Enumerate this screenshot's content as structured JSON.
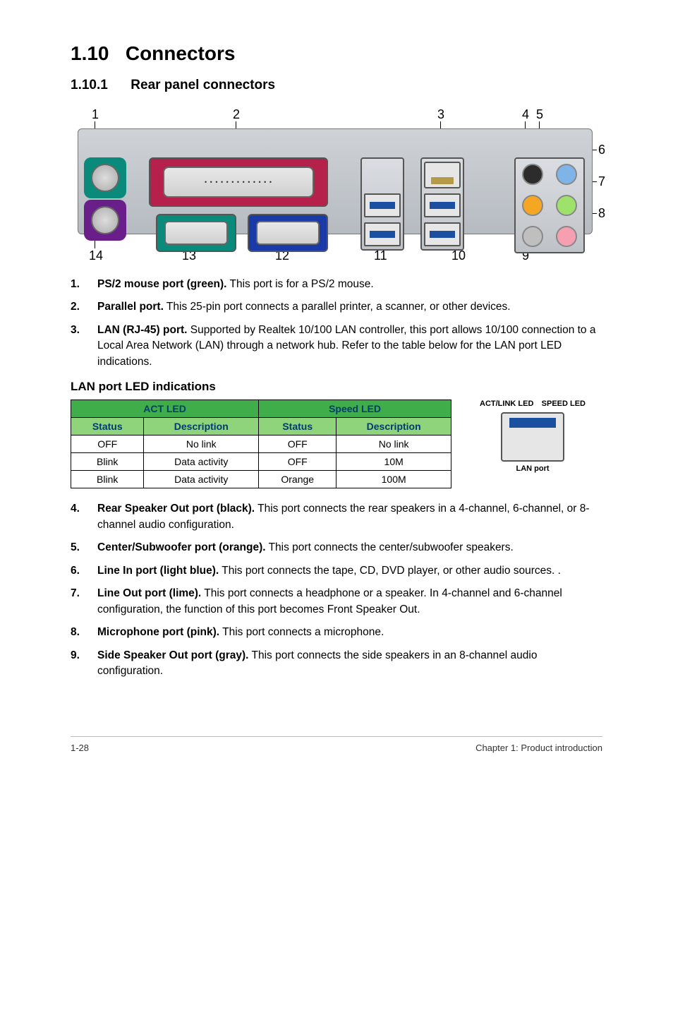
{
  "section": {
    "number": "1.10",
    "title": "Connectors"
  },
  "subsection": {
    "number": "1.10.1",
    "title": "Rear panel connectors"
  },
  "diagram": {
    "callouts_top": [
      "1",
      "2",
      "3",
      "4",
      "5"
    ],
    "callouts_right": [
      "6",
      "7",
      "8"
    ],
    "callouts_bottom": [
      "14",
      "13",
      "12",
      "11",
      "10",
      "9"
    ],
    "audio_jack_colors": {
      "rear_speaker": "#2c2c2c",
      "center_sub": "#f5a623",
      "line_in": "#7fb4e8",
      "line_out": "#9fe26b",
      "mic": "#f59fb0",
      "side_speaker": "#bfbfbf"
    }
  },
  "items_top": [
    {
      "n": "1.",
      "bold": "PS/2 mouse port (green).",
      "rest": " This port is for a PS/2 mouse."
    },
    {
      "n": "2.",
      "bold": "Parallel port.",
      "rest": " This 25-pin port connects a parallel printer, a scanner, or other devices."
    },
    {
      "n": "3.",
      "bold": "LAN (RJ-45) port.",
      "rest": " Supported by Realtek 10/100 LAN controller, this port allows 10/100 connection to a Local Area Network (LAN) through a network hub. Refer to the table below for the LAN port LED indications."
    }
  ],
  "led_block": {
    "title": "LAN port LED indications",
    "header_groups": [
      "ACT LED",
      "Speed LED"
    ],
    "columns": [
      "Status",
      "Description",
      "Status",
      "Description"
    ],
    "rows": [
      [
        "OFF",
        "No link",
        "OFF",
        "No link"
      ],
      [
        "Blink",
        "Data activity",
        "OFF",
        "10M"
      ],
      [
        "Blink",
        "Data activity",
        "Orange",
        "100M"
      ]
    ],
    "act_label": "ACT/LINK LED",
    "speed_label": "SPEED LED",
    "port_label": "LAN port"
  },
  "items_bottom": [
    {
      "n": "4.",
      "bold": "Rear Speaker Out port (black).",
      "rest": " This port connects the rear speakers in a 4-channel, 6-channel, or 8-channel audio configuration."
    },
    {
      "n": "5.",
      "bold": "Center/Subwoofer port (orange).",
      "rest": " This port connects the center/subwoofer speakers."
    },
    {
      "n": "6.",
      "bold": "Line In port (light blue).",
      "rest": " This port connects the tape, CD, DVD player, or other audio sources. ."
    },
    {
      "n": "7.",
      "bold": "Line Out port (lime).",
      "rest": " This port connects a headphone or a speaker. In 4-channel and 6-channel configuration, the function of this port becomes Front Speaker Out."
    },
    {
      "n": "8.",
      "bold": "Microphone port (pink).",
      "rest": " This port connects a microphone."
    },
    {
      "n": "9.",
      "bold": "Side Speaker Out port (gray).",
      "rest": " This port connects the side speakers in an 8-channel audio configuration."
    }
  ],
  "footer": {
    "left": "1-28",
    "right": "Chapter 1: Product introduction"
  }
}
